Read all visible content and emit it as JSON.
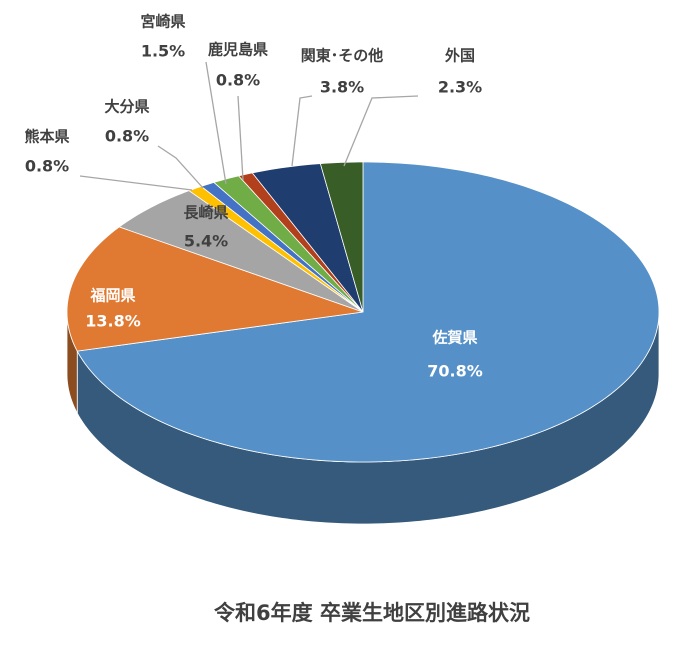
{
  "chart_data": {
    "type": "pie3d",
    "title": "令和6年度 卒業生地区別進路状況",
    "categories": [
      "佐賀県",
      "福岡県",
      "長崎県",
      "熊本県",
      "大分県",
      "宮崎県",
      "鹿児島県",
      "関東･その他",
      "外国"
    ],
    "values": [
      70.8,
      13.8,
      5.4,
      0.8,
      0.8,
      1.5,
      0.8,
      3.8,
      2.3
    ],
    "value_labels": [
      "70.8%",
      "13.8%",
      "5.4%",
      "0.8%",
      "0.8%",
      "1.5%",
      "0.8%",
      "3.8%",
      "2.3%"
    ],
    "colors": [
      "#5591c8",
      "#e07a33",
      "#a5a5a5",
      "#ffc000",
      "#4472c4",
      "#70ad47",
      "#b3401c",
      "#1f3d6e",
      "#385d27"
    ]
  }
}
